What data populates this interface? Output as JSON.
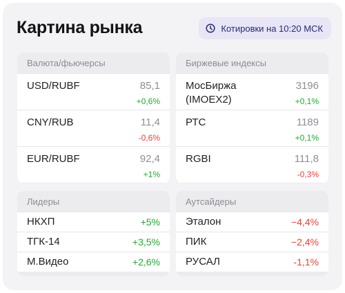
{
  "header": {
    "title": "Картина рынка",
    "quote_time": "Котировки на 10:20 МСК"
  },
  "currencies": {
    "title": "Валюта/фьючерсы",
    "items": [
      {
        "name": "USD/RUBF",
        "price": "85,1",
        "change": "+0,6%"
      },
      {
        "name": "CNY/RUB",
        "price": "11,4",
        "change": "-0,6%"
      },
      {
        "name": "EUR/RUBF",
        "price": "92,4",
        "change": "+1%"
      }
    ]
  },
  "indices": {
    "title": "Биржевые индексы",
    "items": [
      {
        "name": "МосБиржа (IMOEX2)",
        "price": "3196",
        "change": "+0,1%"
      },
      {
        "name": "РТС",
        "price": "1189",
        "change": "+0,1%"
      },
      {
        "name": "RGBI",
        "price": "111,8",
        "change": "-0,3%"
      }
    ]
  },
  "leaders": {
    "title": "Лидеры",
    "items": [
      {
        "name": "НКХП",
        "change": "+5%"
      },
      {
        "name": "ТГК-14",
        "change": "+3,5%"
      },
      {
        "name": "М.Видео",
        "change": "+2,6%"
      }
    ]
  },
  "outsiders": {
    "title": "Аутсайдеры",
    "items": [
      {
        "name": "Эталон",
        "change": "−4,4%"
      },
      {
        "name": "ПИК",
        "change": "−2,4%"
      },
      {
        "name": "РУСАЛ",
        "change": "-1,1%"
      }
    ]
  },
  "colors": {
    "positive": "#22a834",
    "negative": "#e0453b",
    "badge_bg": "#e7e5f6"
  },
  "icons": {
    "quote_time": "clock-icon"
  }
}
